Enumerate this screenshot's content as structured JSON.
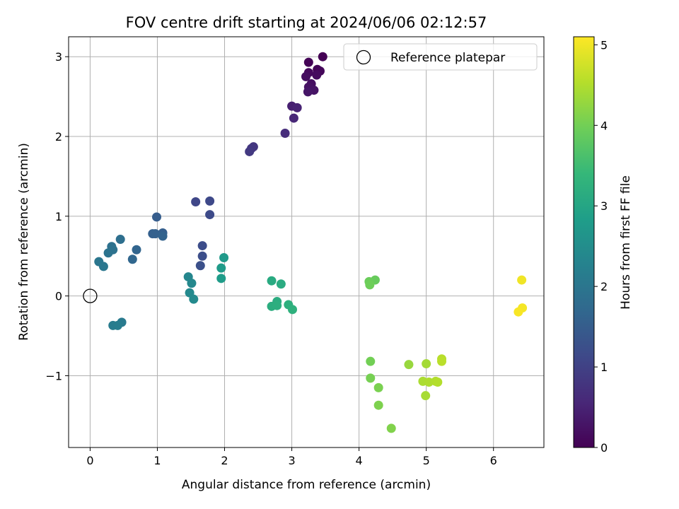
{
  "chart_data": {
    "type": "scatter",
    "title": "FOV centre drift starting at 2024/06/06 02:12:57",
    "xlabel": "Angular distance from reference (arcmin)",
    "ylabel": "Rotation from reference (arcmin)",
    "xlim": [
      -0.32,
      6.75
    ],
    "ylim": [
      -1.9,
      3.25
    ],
    "xticks": [
      0,
      1,
      2,
      3,
      4,
      5,
      6
    ],
    "yticks": [
      -1,
      0,
      1,
      2,
      3
    ],
    "ytick_labels": [
      "−1",
      "0",
      "1",
      "2",
      "3"
    ],
    "grid": true,
    "legend": {
      "label": "Reference platepar",
      "placement": "top-right"
    },
    "reference_point": {
      "x": 0,
      "y": 0
    },
    "colorbar": {
      "label": "Hours from first FF file",
      "range": [
        0,
        5.1
      ],
      "ticks": [
        0,
        1,
        2,
        3,
        4,
        5
      ],
      "colormap": "viridis",
      "colormap_stops": [
        "#440154",
        "#482878",
        "#3e4989",
        "#31688e",
        "#26828e",
        "#1f9e89",
        "#35b779",
        "#6ece58",
        "#b5de2b",
        "#fde725"
      ]
    },
    "points": [
      {
        "x": 3.46,
        "y": 3.0,
        "h": 0.0
      },
      {
        "x": 3.25,
        "y": 2.93,
        "h": 0.03
      },
      {
        "x": 3.38,
        "y": 2.84,
        "h": 0.06
      },
      {
        "x": 3.42,
        "y": 2.82,
        "h": 0.09
      },
      {
        "x": 3.25,
        "y": 2.8,
        "h": 0.12
      },
      {
        "x": 3.37,
        "y": 2.77,
        "h": 0.15
      },
      {
        "x": 3.21,
        "y": 2.75,
        "h": 0.18
      },
      {
        "x": 3.29,
        "y": 2.66,
        "h": 0.21
      },
      {
        "x": 3.25,
        "y": 2.62,
        "h": 0.24
      },
      {
        "x": 3.33,
        "y": 2.58,
        "h": 0.27
      },
      {
        "x": 3.24,
        "y": 2.56,
        "h": 0.3
      },
      {
        "x": 3.0,
        "y": 2.38,
        "h": 0.45
      },
      {
        "x": 3.08,
        "y": 2.36,
        "h": 0.5
      },
      {
        "x": 3.03,
        "y": 2.23,
        "h": 0.55
      },
      {
        "x": 2.9,
        "y": 2.04,
        "h": 0.65
      },
      {
        "x": 2.43,
        "y": 1.87,
        "h": 0.8
      },
      {
        "x": 2.4,
        "y": 1.85,
        "h": 0.83
      },
      {
        "x": 2.37,
        "y": 1.81,
        "h": 0.86
      },
      {
        "x": 1.57,
        "y": 1.18,
        "h": 1.1
      },
      {
        "x": 1.78,
        "y": 1.19,
        "h": 1.13
      },
      {
        "x": 1.78,
        "y": 1.02,
        "h": 1.16
      },
      {
        "x": 1.67,
        "y": 0.63,
        "h": 1.2
      },
      {
        "x": 1.67,
        "y": 0.5,
        "h": 1.23
      },
      {
        "x": 1.64,
        "y": 0.38,
        "h": 1.26
      },
      {
        "x": 0.99,
        "y": 0.99,
        "h": 1.5
      },
      {
        "x": 1.08,
        "y": 0.79,
        "h": 1.53
      },
      {
        "x": 0.93,
        "y": 0.78,
        "h": 1.56
      },
      {
        "x": 0.97,
        "y": 0.78,
        "h": 1.58
      },
      {
        "x": 1.08,
        "y": 0.75,
        "h": 1.6
      },
      {
        "x": 0.69,
        "y": 0.58,
        "h": 1.65
      },
      {
        "x": 0.63,
        "y": 0.46,
        "h": 1.68
      },
      {
        "x": 0.45,
        "y": 0.71,
        "h": 1.85
      },
      {
        "x": 0.32,
        "y": 0.62,
        "h": 1.9
      },
      {
        "x": 0.34,
        "y": 0.58,
        "h": 1.92
      },
      {
        "x": 0.27,
        "y": 0.54,
        "h": 1.95
      },
      {
        "x": 0.13,
        "y": 0.43,
        "h": 2.0
      },
      {
        "x": 0.2,
        "y": 0.37,
        "h": 2.03
      },
      {
        "x": 0.47,
        "y": -0.33,
        "h": 2.1
      },
      {
        "x": 0.34,
        "y": -0.37,
        "h": 2.13
      },
      {
        "x": 0.41,
        "y": -0.37,
        "h": 2.15
      },
      {
        "x": 1.46,
        "y": 0.24,
        "h": 2.35
      },
      {
        "x": 1.51,
        "y": 0.16,
        "h": 2.38
      },
      {
        "x": 1.48,
        "y": 0.04,
        "h": 2.4
      },
      {
        "x": 1.54,
        "y": -0.04,
        "h": 2.43
      },
      {
        "x": 1.99,
        "y": 0.48,
        "h": 2.75
      },
      {
        "x": 1.95,
        "y": 0.35,
        "h": 2.78
      },
      {
        "x": 1.95,
        "y": 0.22,
        "h": 2.8
      },
      {
        "x": 2.7,
        "y": 0.19,
        "h": 3.1
      },
      {
        "x": 2.84,
        "y": 0.15,
        "h": 3.13
      },
      {
        "x": 2.78,
        "y": -0.07,
        "h": 3.16
      },
      {
        "x": 2.7,
        "y": -0.13,
        "h": 3.18
      },
      {
        "x": 2.78,
        "y": -0.12,
        "h": 3.2
      },
      {
        "x": 2.95,
        "y": -0.11,
        "h": 3.22
      },
      {
        "x": 3.01,
        "y": -0.17,
        "h": 3.25
      },
      {
        "x": 4.24,
        "y": 0.2,
        "h": 3.9
      },
      {
        "x": 4.15,
        "y": 0.18,
        "h": 3.93
      },
      {
        "x": 4.16,
        "y": 0.14,
        "h": 3.96
      },
      {
        "x": 4.17,
        "y": -0.82,
        "h": 4.0
      },
      {
        "x": 4.17,
        "y": -1.03,
        "h": 4.03
      },
      {
        "x": 4.29,
        "y": -1.15,
        "h": 4.06
      },
      {
        "x": 4.29,
        "y": -1.37,
        "h": 4.09
      },
      {
        "x": 4.48,
        "y": -1.66,
        "h": 4.12
      },
      {
        "x": 4.74,
        "y": -0.86,
        "h": 4.3
      },
      {
        "x": 5.0,
        "y": -0.85,
        "h": 4.4
      },
      {
        "x": 4.95,
        "y": -1.07,
        "h": 4.45
      },
      {
        "x": 5.04,
        "y": -1.08,
        "h": 4.48
      },
      {
        "x": 5.14,
        "y": -1.07,
        "h": 4.5
      },
      {
        "x": 5.17,
        "y": -1.08,
        "h": 4.52
      },
      {
        "x": 4.99,
        "y": -1.25,
        "h": 4.42
      },
      {
        "x": 5.23,
        "y": -0.79,
        "h": 4.55
      },
      {
        "x": 5.23,
        "y": -0.82,
        "h": 4.57
      },
      {
        "x": 6.42,
        "y": 0.2,
        "h": 5.0
      },
      {
        "x": 6.43,
        "y": -0.15,
        "h": 5.03
      },
      {
        "x": 6.37,
        "y": -0.2,
        "h": 5.06
      }
    ]
  }
}
